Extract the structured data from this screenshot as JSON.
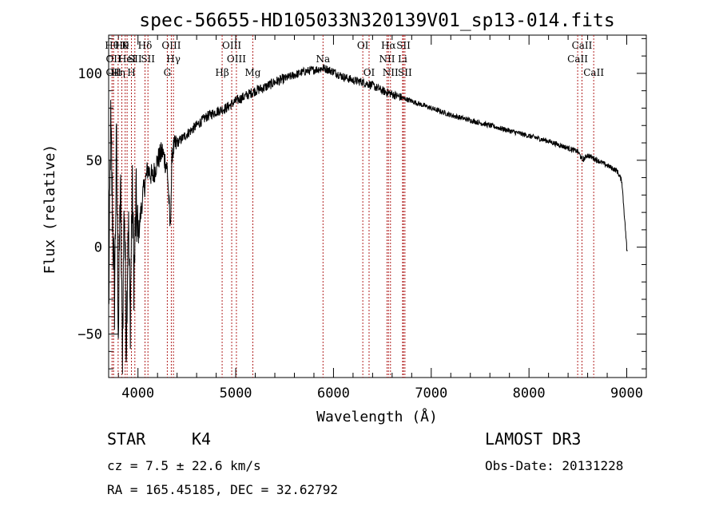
{
  "chart_data": {
    "type": "line",
    "title": "spec-56655-HD105033N320139V01_sp13-014.fits",
    "xlabel": "Wavelength (Å)",
    "ylabel": "Flux (relative)",
    "xlim": [
      3700,
      9200
    ],
    "ylim": [
      -75,
      122
    ],
    "xticks": [
      4000,
      5000,
      6000,
      7000,
      8000,
      9000
    ],
    "xtick_labels": [
      "4000",
      "5000",
      "6000",
      "7000",
      "8000",
      "9000"
    ],
    "yticks": [
      -50,
      0,
      50,
      100
    ],
    "ytick_labels": [
      "−50",
      "0",
      "50",
      "100"
    ],
    "grid": false,
    "series": [
      {
        "name": "spectrum",
        "x": [
          3700,
          3720,
          3740,
          3760,
          3780,
          3800,
          3820,
          3840,
          3860,
          3880,
          3900,
          3920,
          3940,
          3960,
          3980,
          4000,
          4050,
          4100,
          4150,
          4200,
          4250,
          4300,
          4330,
          4350,
          4400,
          4500,
          4600,
          4700,
          4800,
          4900,
          5000,
          5100,
          5200,
          5300,
          5400,
          5500,
          5600,
          5700,
          5800,
          5900,
          6000,
          6100,
          6200,
          6300,
          6400,
          6500,
          6600,
          6700,
          6800,
          6900,
          7000,
          7200,
          7400,
          7600,
          7800,
          8000,
          8200,
          8400,
          8500,
          8550,
          8600,
          8700,
          8800,
          8900,
          8950,
          9000
        ],
        "y": [
          -40,
          70,
          20,
          -30,
          60,
          -50,
          40,
          -60,
          30,
          -55,
          20,
          -45,
          35,
          -20,
          25,
          5,
          30,
          45,
          40,
          50,
          55,
          45,
          10,
          55,
          60,
          65,
          70,
          75,
          78,
          80,
          84,
          87,
          90,
          92,
          95,
          97,
          99,
          101,
          102,
          103,
          101,
          98,
          96,
          95,
          93,
          90,
          88,
          86,
          84,
          82,
          80,
          76,
          73,
          70,
          67,
          64,
          61,
          57,
          55,
          50,
          53,
          50,
          47,
          44,
          38,
          0
        ]
      }
    ],
    "lines": [
      {
        "x": 3734,
        "label": "Hθ",
        "row": 1,
        "color": "#b22222"
      },
      {
        "x": 3750,
        "label": "OII",
        "row": 2,
        "color": "#b22222"
      },
      {
        "x": 3750,
        "label": "OII",
        "row": 3,
        "color": "#b22222"
      },
      {
        "x": 3797,
        "label": "Hη",
        "row": 3,
        "color": "#b22222"
      },
      {
        "x": 3835,
        "label": "Hθ",
        "row": 1,
        "color": "#b22222"
      },
      {
        "x": 3869,
        "label": "K",
        "row": 1,
        "color": "#b22222"
      },
      {
        "x": 3889,
        "label": "HeI",
        "row": 2,
        "color": "#b22222"
      },
      {
        "x": 3933,
        "label": "H",
        "row": 3,
        "color": "#b22222"
      },
      {
        "x": 3968,
        "label": "SII",
        "row": 2,
        "color": "#b22222"
      },
      {
        "x": 4072,
        "label": "Hδ",
        "row": 1,
        "color": "#b22222"
      },
      {
        "x": 4102,
        "label": "SII",
        "row": 2,
        "color": "#b22222"
      },
      {
        "x": 4300,
        "label": "G",
        "row": 3,
        "color": "#b22222"
      },
      {
        "x": 4341,
        "label": "OIII",
        "row": 1,
        "color": "#b22222"
      },
      {
        "x": 4363,
        "label": "Hγ",
        "row": 2,
        "color": "#b22222"
      },
      {
        "x": 4861,
        "label": "Hβ",
        "row": 3,
        "color": "#b22222"
      },
      {
        "x": 4959,
        "label": "OIII",
        "row": 1,
        "color": "#b22222"
      },
      {
        "x": 5007,
        "label": "OIII",
        "row": 2,
        "color": "#b22222"
      },
      {
        "x": 5175,
        "label": "Mg",
        "row": 3,
        "color": "#b22222"
      },
      {
        "x": 5893,
        "label": "Na",
        "row": 2,
        "color": "#b22222"
      },
      {
        "x": 6300,
        "label": "OI",
        "row": 1,
        "color": "#b22222"
      },
      {
        "x": 6364,
        "label": "OI",
        "row": 3,
        "color": "#b22222"
      },
      {
        "x": 6548,
        "label": "NII",
        "row": 2,
        "color": "#b22222"
      },
      {
        "x": 6563,
        "label": "Hα",
        "row": 1,
        "color": "#b22222"
      },
      {
        "x": 6583,
        "label": "NII",
        "row": 3,
        "color": "#b22222"
      },
      {
        "x": 6707,
        "label": "Li",
        "row": 2,
        "color": "#b22222"
      },
      {
        "x": 6716,
        "label": "SII",
        "row": 1,
        "color": "#b22222"
      },
      {
        "x": 6731,
        "label": "SII",
        "row": 3,
        "color": "#b22222"
      },
      {
        "x": 8498,
        "label": "CaII",
        "row": 2,
        "color": "#b22222"
      },
      {
        "x": 8542,
        "label": "CaII",
        "row": 1,
        "color": "#b22222"
      },
      {
        "x": 8662,
        "label": "CaII",
        "row": 3,
        "color": "#b22222"
      }
    ]
  },
  "info": {
    "class_label": "STAR",
    "subclass": "K4",
    "survey": "LAMOST DR3",
    "redshift": "cz = 7.5 ± 22.6 km/s",
    "obs_date": "Obs-Date: 20131228",
    "coords": "RA = 165.45185, DEC =  32.62792"
  }
}
